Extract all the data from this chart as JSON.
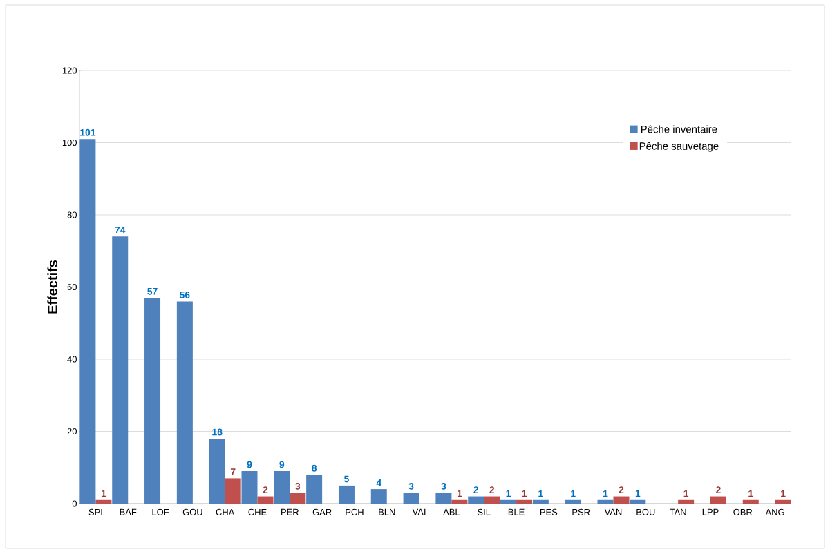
{
  "chart_data": {
    "type": "bar",
    "ylabel": "Effectifs",
    "categories": [
      "SPI",
      "BAF",
      "LOF",
      "GOU",
      "CHA",
      "CHE",
      "PER",
      "GAR",
      "PCH",
      "BLN",
      "VAI",
      "ABL",
      "SIL",
      "BLE",
      "PES",
      "PSR",
      "VAN",
      "BOU",
      "TAN",
      "LPP",
      "OBR",
      "ANG"
    ],
    "series": [
      {
        "name": "Pêche inventaire",
        "color": "#4f81bd",
        "values": [
          101,
          74,
          57,
          56,
          18,
          9,
          9,
          8,
          5,
          4,
          3,
          3,
          2,
          1,
          1,
          1,
          1,
          1,
          null,
          null,
          null,
          null
        ]
      },
      {
        "name": "Pêche sauvetage",
        "color": "#c0504d",
        "values": [
          1,
          null,
          null,
          null,
          7,
          2,
          3,
          null,
          null,
          null,
          null,
          1,
          2,
          1,
          null,
          null,
          2,
          null,
          1,
          2,
          1,
          1
        ]
      }
    ],
    "ylim": [
      0,
      120
    ],
    "yticks": [
      0,
      20,
      40,
      60,
      80,
      100,
      120
    ],
    "grid": "y",
    "legend": "top right",
    "data_labels": true
  }
}
